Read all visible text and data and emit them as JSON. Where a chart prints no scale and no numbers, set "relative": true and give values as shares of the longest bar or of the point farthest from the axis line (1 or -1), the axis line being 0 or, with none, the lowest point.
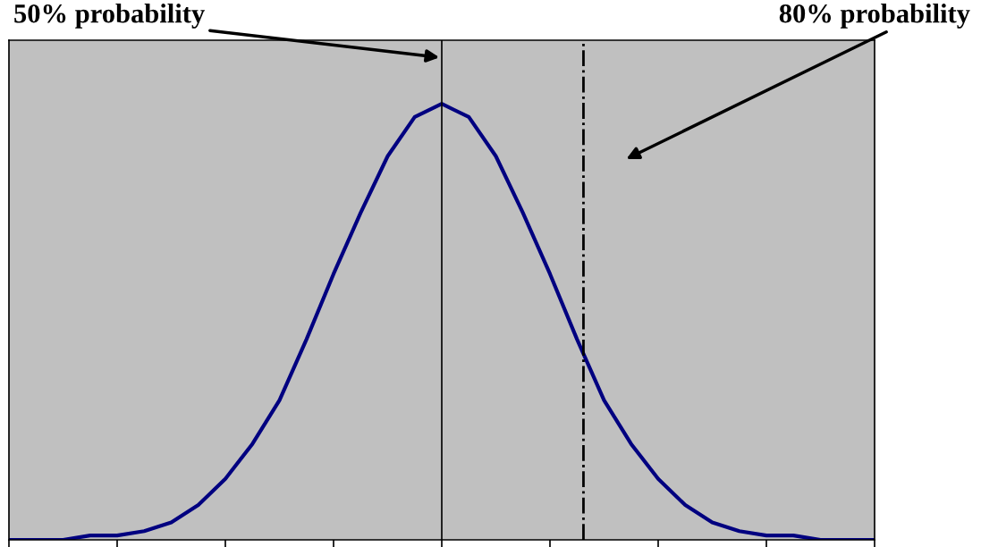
{
  "chart_data": {
    "type": "line",
    "relative": true,
    "grid": false,
    "legend": false,
    "marker": "none",
    "line_style": "solid",
    "categories": [
      null,
      null,
      null,
      null,
      null,
      null,
      null,
      null,
      null,
      null,
      null,
      null,
      null,
      null,
      null,
      null,
      null,
      null,
      null,
      null,
      null,
      null,
      null,
      null,
      null,
      null,
      null,
      null,
      null,
      null,
      null,
      null,
      null
    ],
    "series": [
      {
        "color": "#000080",
        "values": [
          0,
          0,
          0,
          0.01,
          0.01,
          0.02,
          0.04,
          0.08,
          0.14,
          0.22,
          0.32,
          0.46,
          0.61,
          0.75,
          0.88,
          0.97,
          1,
          0.97,
          0.88,
          0.75,
          0.61,
          0.46,
          0.32,
          0.22,
          0.14,
          0.08,
          0.04,
          0.02,
          0.01,
          0.01,
          0,
          0,
          0
        ]
      }
    ],
    "annotations": [
      "50% probability",
      "80% probability"
    ]
  }
}
